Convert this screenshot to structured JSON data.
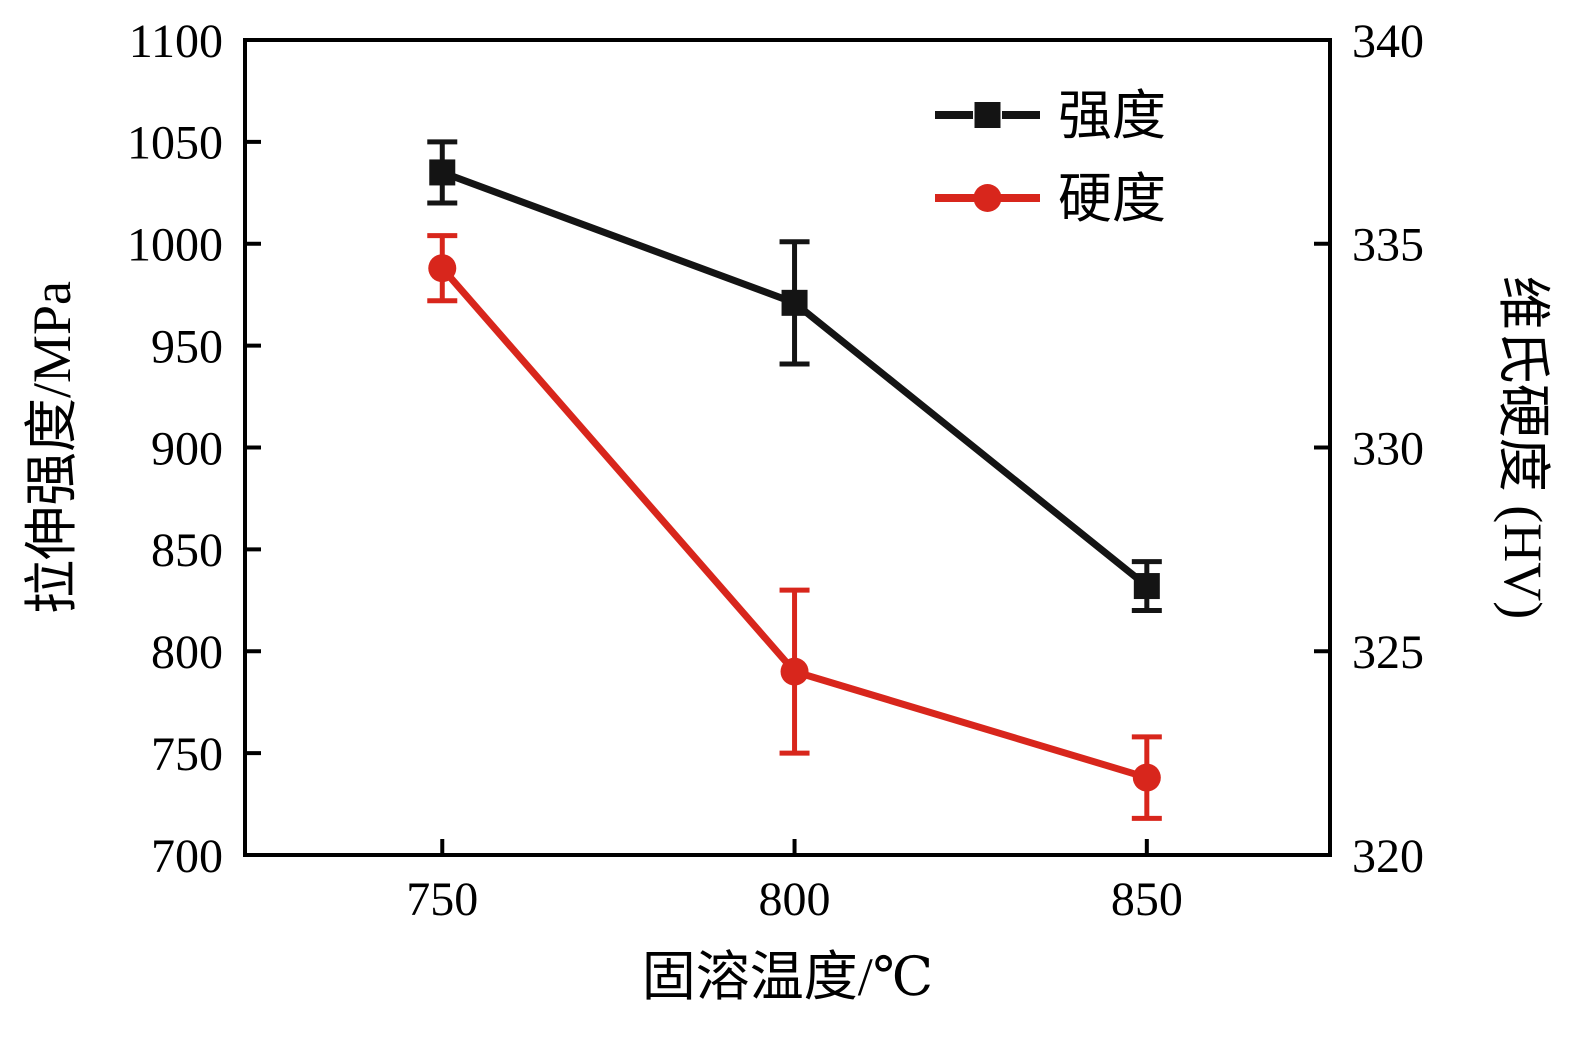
{
  "figure": {
    "background": "#ffffff",
    "frame_color": "#000000"
  },
  "chart_data": {
    "type": "line",
    "title": "",
    "xlabel": "固溶温度/℃",
    "ylabel_left": "拉伸强度/MPa",
    "ylabel_right": "维氏硬度 (HV)",
    "x": [
      750,
      800,
      850
    ],
    "xticks": [
      750,
      800,
      850
    ],
    "xlim": [
      722,
      876
    ],
    "ylim_left": [
      700,
      1100
    ],
    "yticks_left": [
      700,
      750,
      800,
      850,
      900,
      950,
      1000,
      1050,
      1100
    ],
    "ylim_right": [
      320,
      340
    ],
    "yticks_right": [
      320,
      325,
      330,
      335,
      340
    ],
    "grid": false,
    "legend_position": "upper-right-inside",
    "series": [
      {
        "name": "强度",
        "axis": "left",
        "unit": "MPa",
        "color": "#141414",
        "marker": "square",
        "values": [
          1035,
          971,
          832
        ],
        "errors": [
          15,
          30,
          12
        ]
      },
      {
        "name": "硬度",
        "axis": "right",
        "unit": "HV",
        "color": "#d8261c",
        "marker": "circle",
        "values": [
          334.4,
          324.5,
          321.9
        ],
        "errors": [
          0.8,
          2.0,
          1.0
        ]
      }
    ]
  }
}
